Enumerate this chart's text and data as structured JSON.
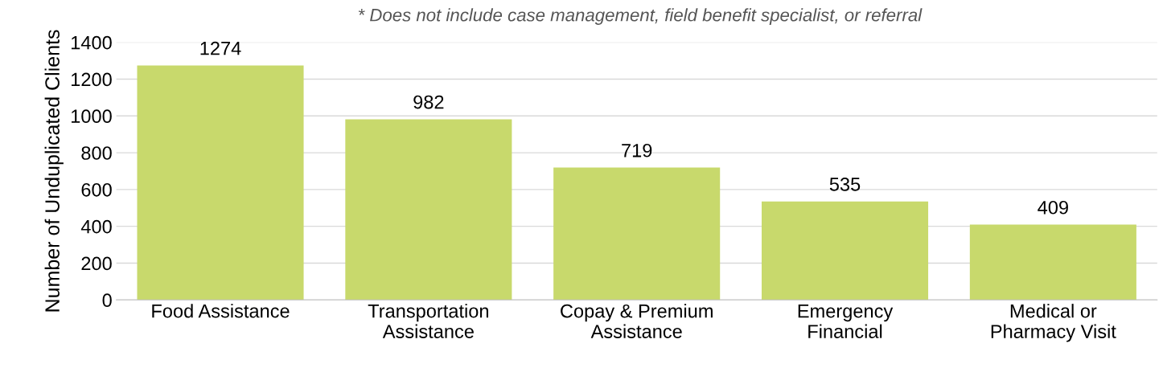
{
  "chart_data": {
    "type": "bar",
    "ylabel": "Number of Unduplicated Clients",
    "annotations": [
      "* Does not include case management, field benefit specialist, or referral"
    ],
    "categories": [
      "Food Assistance",
      "Transportation\nAssistance",
      "Copay & Premium\nAssistance",
      "Emergency\nFinancial",
      "Medical or\nPharmacy Visit"
    ],
    "values": [
      1274,
      982,
      719,
      535,
      409
    ],
    "color": "#c8d96c",
    "ylim": [
      0,
      1400
    ],
    "yticks": [
      0,
      200,
      400,
      600,
      800,
      1000,
      1200,
      1400
    ],
    "grid": "y",
    "data_labels": true
  }
}
